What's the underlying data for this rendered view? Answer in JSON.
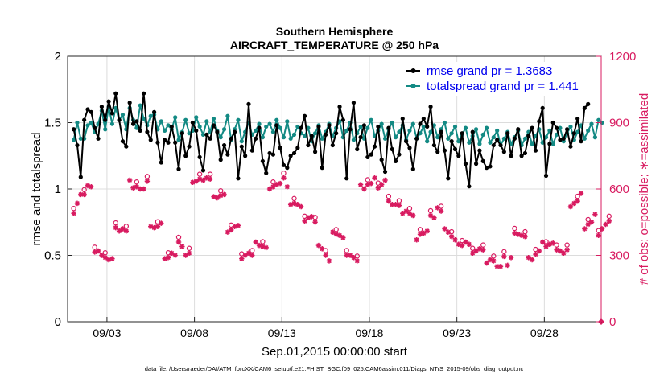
{
  "chart_data": {
    "type": "line",
    "title": [
      "Southern Hemisphere",
      "AIRCRAFT_TEMPERATURE @ 250 hPa"
    ],
    "xlabel": "Sep.01,2015 00:00:00 start",
    "ylabel": "rmse and totalspread",
    "ylabel_right": "# of obs: o=possible; ∗=assimilated",
    "x_range_days": [
      0.75,
      31.25
    ],
    "ylim": [
      0,
      2
    ],
    "ylim_right": [
      0,
      1200
    ],
    "yticks": [
      "0",
      "0.5",
      "1",
      "1.5",
      "2"
    ],
    "yticks_right": [
      "0",
      "300",
      "600",
      "900",
      "1200"
    ],
    "xticks": [
      {
        "day": 3,
        "label": "09/03"
      },
      {
        "day": 8,
        "label": "09/08"
      },
      {
        "day": 13,
        "label": "09/13"
      },
      {
        "day": 18,
        "label": "09/18"
      },
      {
        "day": 23,
        "label": "09/23"
      },
      {
        "day": 28,
        "label": "09/28"
      }
    ],
    "legend_position": "top-right",
    "colors": {
      "rmse": "#000000",
      "spread": "#138a84",
      "obs": "#d81b60",
      "grid": "#dcdcdc"
    },
    "series": [
      {
        "name": "rmse grand pr = 1.3683",
        "key": "rmse",
        "marker": "dot",
        "values": [
          1.45,
          1.33,
          1.09,
          1.52,
          1.6,
          1.58,
          1.46,
          1.38,
          1.62,
          1.52,
          1.66,
          1.57,
          1.72,
          1.52,
          1.36,
          1.32,
          1.65,
          1.49,
          1.51,
          1.44,
          1.72,
          1.43,
          1.37,
          1.58,
          1.35,
          1.2,
          1.37,
          1.35,
          1.47,
          1.35,
          1.15,
          1.42,
          1.25,
          1.32,
          1.5,
          1.44,
          1.24,
          1.14,
          1.41,
          1.38,
          1.48,
          1.43,
          1.22,
          1.33,
          1.26,
          1.38,
          1.43,
          1.08,
          1.32,
          1.25,
          1.64,
          1.29,
          1.38,
          1.46,
          1.21,
          1.12,
          1.27,
          1.26,
          1.48,
          1.31,
          1.18,
          1.16,
          1.25,
          1.27,
          1.31,
          1.46,
          1.55,
          1.33,
          1.4,
          1.28,
          1.47,
          1.16,
          1.41,
          1.48,
          1.33,
          1.42,
          1.62,
          1.52,
          1.08,
          1.45,
          1.65,
          1.3,
          1.39,
          1.48,
          1.24,
          1.26,
          1.32,
          1.47,
          1.22,
          1.13,
          1.46,
          1.3,
          1.21,
          1.26,
          1.53,
          1.36,
          1.31,
          1.15,
          1.38,
          1.49,
          1.53,
          1.47,
          1.62,
          1.33,
          1.28,
          1.43,
          1.29,
          1.08,
          1.36,
          1.3,
          1.25,
          1.42,
          1.19,
          1.02,
          1.43,
          1.19,
          1.29,
          1.21,
          1.16,
          1.17,
          1.33,
          1.37,
          1.33,
          1.28,
          1.42,
          1.25,
          1.38,
          1.45,
          1.25,
          1.27,
          1.4,
          1.46,
          1.29,
          1.51,
          1.61,
          1.1,
          1.34,
          1.5,
          1.46,
          1.37,
          1.38,
          1.45,
          1.32,
          1.42,
          1.53,
          1.36,
          1.61,
          1.64
        ]
      },
      {
        "name": "totalspread grand pr = 1.441",
        "key": "spread",
        "marker": "dot",
        "values": [
          1.37,
          1.5,
          1.38,
          1.38,
          1.48,
          1.5,
          1.43,
          1.49,
          1.59,
          1.45,
          1.62,
          1.49,
          1.61,
          1.52,
          1.56,
          1.45,
          1.61,
          1.52,
          1.46,
          1.63,
          1.53,
          1.48,
          1.55,
          1.56,
          1.45,
          1.51,
          1.44,
          1.48,
          1.45,
          1.54,
          1.37,
          1.43,
          1.52,
          1.42,
          1.44,
          1.54,
          1.47,
          1.41,
          1.51,
          1.43,
          1.53,
          1.44,
          1.39,
          1.45,
          1.55,
          1.37,
          1.45,
          1.52,
          1.36,
          1.43,
          1.5,
          1.41,
          1.44,
          1.49,
          1.39,
          1.47,
          1.49,
          1.43,
          1.52,
          1.46,
          1.39,
          1.51,
          1.38,
          1.41,
          1.47,
          1.42,
          1.4,
          1.46,
          1.36,
          1.42,
          1.48,
          1.38,
          1.43,
          1.49,
          1.4,
          1.46,
          1.51,
          1.39,
          1.44,
          1.5,
          1.37,
          1.42,
          1.47,
          1.38,
          1.46,
          1.52,
          1.4,
          1.44,
          1.49,
          1.38,
          1.45,
          1.5,
          1.39,
          1.43,
          1.48,
          1.37,
          1.44,
          1.49,
          1.38,
          1.42,
          1.47,
          1.36,
          1.43,
          1.48,
          1.39,
          1.45,
          1.5,
          1.38,
          1.42,
          1.47,
          1.36,
          1.41,
          1.46,
          1.35,
          1.4,
          1.45,
          1.34,
          1.41,
          1.46,
          1.35,
          1.39,
          1.44,
          1.33,
          1.38,
          1.43,
          1.34,
          1.39,
          1.44,
          1.33,
          1.38,
          1.43,
          1.34,
          1.4,
          1.45,
          1.35,
          1.39,
          1.44,
          1.34,
          1.41,
          1.46,
          1.36,
          1.42,
          1.47,
          1.37,
          1.43,
          1.48,
          1.38,
          1.44,
          1.49,
          1.39,
          1.52,
          1.5
        ]
      },
      {
        "name": "observation count",
        "key": "obs",
        "marker": "asterisk-and-circle",
        "axis": "right",
        "values": [
          490,
          535,
          575,
          575,
          615,
          610,
          315,
          320,
          300,
          290,
          280,
          285,
          425,
          410,
          420,
          410,
          640,
          605,
          610,
          600,
          600,
          635,
          430,
          425,
          430,
          445,
          285,
          290,
          310,
          300,
          360,
          340,
          300,
          310,
          630,
          635,
          645,
          640,
          650,
          645,
          565,
          560,
          570,
          575,
          405,
          415,
          430,
          435,
          285,
          300,
          310,
          300,
          360,
          345,
          340,
          335,
          600,
          610,
          620,
          625,
          650,
          610,
          530,
          535,
          530,
          520,
          455,
          470,
          475,
          450,
          345,
          330,
          300,
          275,
          405,
          395,
          390,
          380,
          300,
          300,
          290,
          275,
          620,
          600,
          620,
          625,
          650,
          605,
          620,
          640,
          545,
          530,
          530,
          525,
          490,
          500,
          490,
          480,
          370,
          395,
          400,
          410,
          480,
          470,
          515,
          500,
          420,
          405,
          385,
          370,
          350,
          345,
          360,
          350,
          310,
          320,
          330,
          325,
          265,
          280,
          275,
          250,
          250,
          295,
          255,
          290,
          400,
          395,
          390,
          385,
          290,
          280,
          305,
          320,
          360,
          340,
          350,
          355,
          325,
          320,
          310,
          325,
          520,
          535,
          545,
          580,
          420,
          440,
          450,
          485,
          390,
          420,
          440,
          455
        ]
      }
    ]
  },
  "footer": "data file: /Users/raeder/DAI/ATM_forcXX/CAM6_setup/f.e21.FHIST_BGC.f09_025.CAM6assim.011/Diags_NTrS_2015-09/obs_diag_output.nc"
}
